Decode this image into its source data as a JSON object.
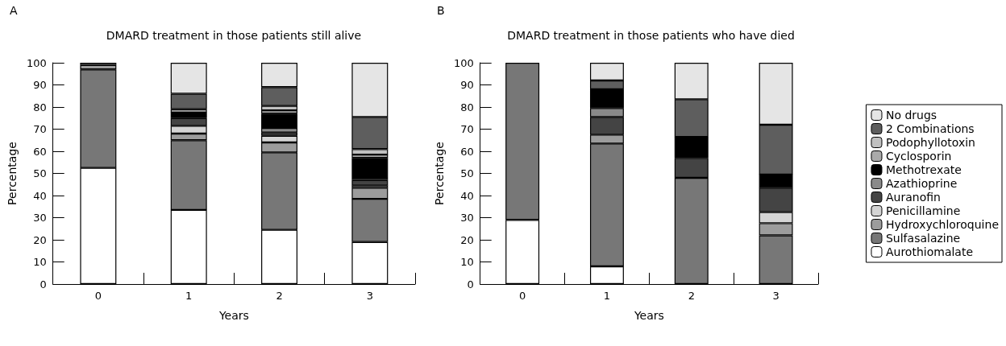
{
  "chart_data": [
    {
      "type": "bar",
      "stacked": true,
      "title": "DMARD treatment in those patients still alive",
      "annotations": [
        "A"
      ],
      "xlabel": "Years",
      "ylabel": "Percentage",
      "categories": [
        "0",
        "1",
        "2",
        "3"
      ],
      "ylim": [
        0,
        100
      ],
      "yticks": [
        0,
        10,
        20,
        30,
        40,
        50,
        60,
        70,
        80,
        90,
        100
      ],
      "grid": false,
      "legend": false,
      "series": [
        {
          "color": "#ffffff",
          "values": [
            52.5,
            33.5,
            24.5,
            19
          ]
        },
        {
          "color": "#777777",
          "values": [
            44.5,
            31.5,
            35,
            19.5
          ]
        },
        {
          "color": "#9c9c9c",
          "values": [
            2,
            3,
            4.5,
            5
          ]
        },
        {
          "color": "#d4d4d4",
          "values": [
            null,
            3.5,
            3,
            1
          ]
        },
        {
          "color": "#444444",
          "values": [
            null,
            3.5,
            1.5,
            2.5
          ]
        },
        {
          "color": "#8a8a8a",
          "values": [
            null,
            null,
            2,
            1
          ]
        },
        {
          "color": "#000000",
          "values": [
            null,
            2.5,
            6.5,
            9
          ]
        },
        {
          "color": "#aaaaaa",
          "values": [
            null,
            1.5,
            1.5,
            1.5
          ]
        },
        {
          "color": "#c0c0c0",
          "values": [
            null,
            null,
            2,
            2.5
          ]
        },
        {
          "color": "#5e5e5e",
          "values": [
            null,
            7,
            8.5,
            14.5
          ]
        },
        {
          "color": "#e5e5e5",
          "values": [
            1,
            14,
            11,
            24.5
          ]
        }
      ]
    },
    {
      "type": "bar",
      "stacked": true,
      "title": "DMARD treatment in those patients who have died",
      "annotations": [
        "B"
      ],
      "xlabel": "Years",
      "ylabel": "Percentage",
      "categories": [
        "0",
        "1",
        "2",
        "3"
      ],
      "ylim": [
        0,
        100
      ],
      "yticks": [
        0,
        10,
        20,
        30,
        40,
        50,
        60,
        70,
        80,
        90,
        100
      ],
      "grid": false,
      "legend": "right",
      "series": [
        {
          "name": "Aurothiomalate",
          "color": "#ffffff",
          "values": [
            29,
            8,
            null,
            null
          ]
        },
        {
          "name": "Sulfasalazine",
          "color": "#777777",
          "values": [
            71,
            55.5,
            48,
            22
          ]
        },
        {
          "name": "Hydroxychloroquine",
          "color": "#9c9c9c",
          "values": [
            null,
            4,
            null,
            5.5
          ]
        },
        {
          "name": "Penicillamine",
          "color": "#d4d4d4",
          "values": [
            null,
            null,
            null,
            5
          ]
        },
        {
          "name": "Auranofin",
          "color": "#444444",
          "values": [
            null,
            8,
            9,
            11
          ]
        },
        {
          "name": "Azathioprine",
          "color": "#8a8a8a",
          "values": [
            null,
            4,
            null,
            null
          ]
        },
        {
          "name": "Methotrexate",
          "color": "#000000",
          "values": [
            null,
            8.5,
            9.5,
            6
          ]
        },
        {
          "name": "Cyclosporin",
          "color": "#aaaaaa",
          "values": [
            null,
            null,
            null,
            null
          ]
        },
        {
          "name": "Podophyllotoxin",
          "color": "#c0c0c0",
          "values": [
            null,
            null,
            null,
            null
          ]
        },
        {
          "name": "2 Combinations",
          "color": "#5e5e5e",
          "values": [
            null,
            4,
            17,
            22.5
          ]
        },
        {
          "name": "No drugs",
          "color": "#e5e5e5",
          "values": [
            null,
            8,
            16.5,
            28
          ]
        }
      ]
    }
  ]
}
